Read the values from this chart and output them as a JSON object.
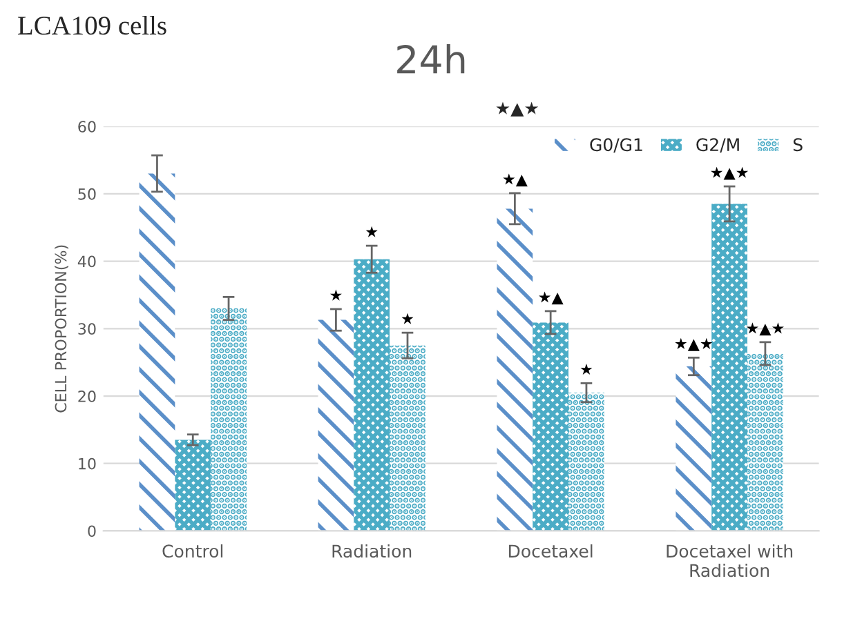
{
  "chart_data": {
    "type": "bar",
    "title": "24h",
    "ylabel": "CELL PROPORTION(%)",
    "categories": [
      "Control",
      "Radiation",
      "Docetaxel",
      "Docetaxel with\nRadiation"
    ],
    "series": [
      {
        "name": "G0/G1",
        "color": "#5b8fc9",
        "values": [
          53,
          31.3,
          47.8,
          24.4
        ],
        "errors": [
          2.7,
          1.6,
          2.3,
          1.3
        ],
        "value_labels": [
          null,
          "★",
          "★▲",
          "★▲★"
        ]
      },
      {
        "name": "G2/M",
        "color": "#4bacc6",
        "values": [
          13.5,
          40.3,
          30.9,
          48.5
        ],
        "errors": [
          0.8,
          2.0,
          1.7,
          2.6
        ],
        "value_labels": [
          null,
          "★",
          "★▲",
          "★▲★"
        ]
      },
      {
        "name": "S",
        "color": "#4bacc6",
        "values": [
          33,
          27.5,
          20.5,
          26.3
        ],
        "errors": [
          1.7,
          1.9,
          1.4,
          1.7
        ],
        "value_labels": [
          null,
          "★",
          "★",
          "★▲★"
        ]
      }
    ],
    "ylim": [
      0,
      60
    ],
    "yticks": [
      0,
      10,
      20,
      30,
      40,
      50,
      60
    ],
    "grid": "y",
    "legend": "top right",
    "annotations": [
      "LCA109 cells",
      "★▲★"
    ]
  }
}
